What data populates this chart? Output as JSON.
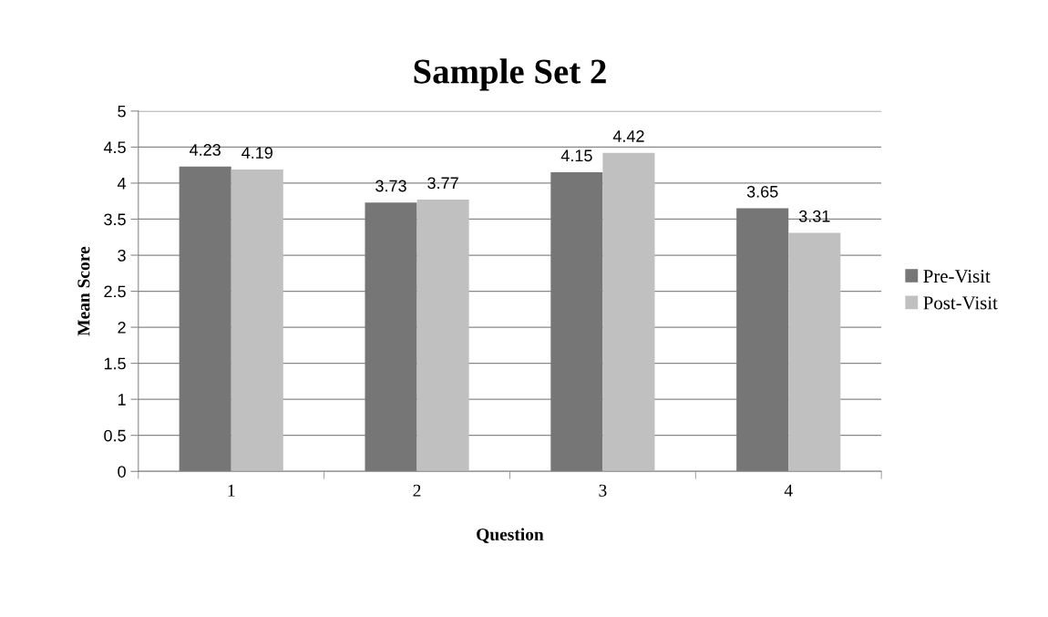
{
  "chart_data": {
    "type": "bar",
    "title": "Sample Set 2",
    "xlabel": "Question",
    "ylabel": "Mean Score",
    "categories": [
      "1",
      "2",
      "3",
      "4"
    ],
    "series": [
      {
        "name": "Pre-Visit",
        "color": "#767676",
        "values": [
          4.23,
          3.73,
          4.15,
          3.65
        ]
      },
      {
        "name": "Post-Visit",
        "color": "#c0c0c0",
        "values": [
          4.19,
          3.77,
          4.42,
          3.31
        ]
      }
    ],
    "ylim": [
      0,
      5
    ],
    "yticks": [
      0,
      0.5,
      1,
      1.5,
      2,
      2.5,
      3,
      3.5,
      4,
      4.5,
      5
    ],
    "grid": "y",
    "legend": "right",
    "data_labels": true
  }
}
